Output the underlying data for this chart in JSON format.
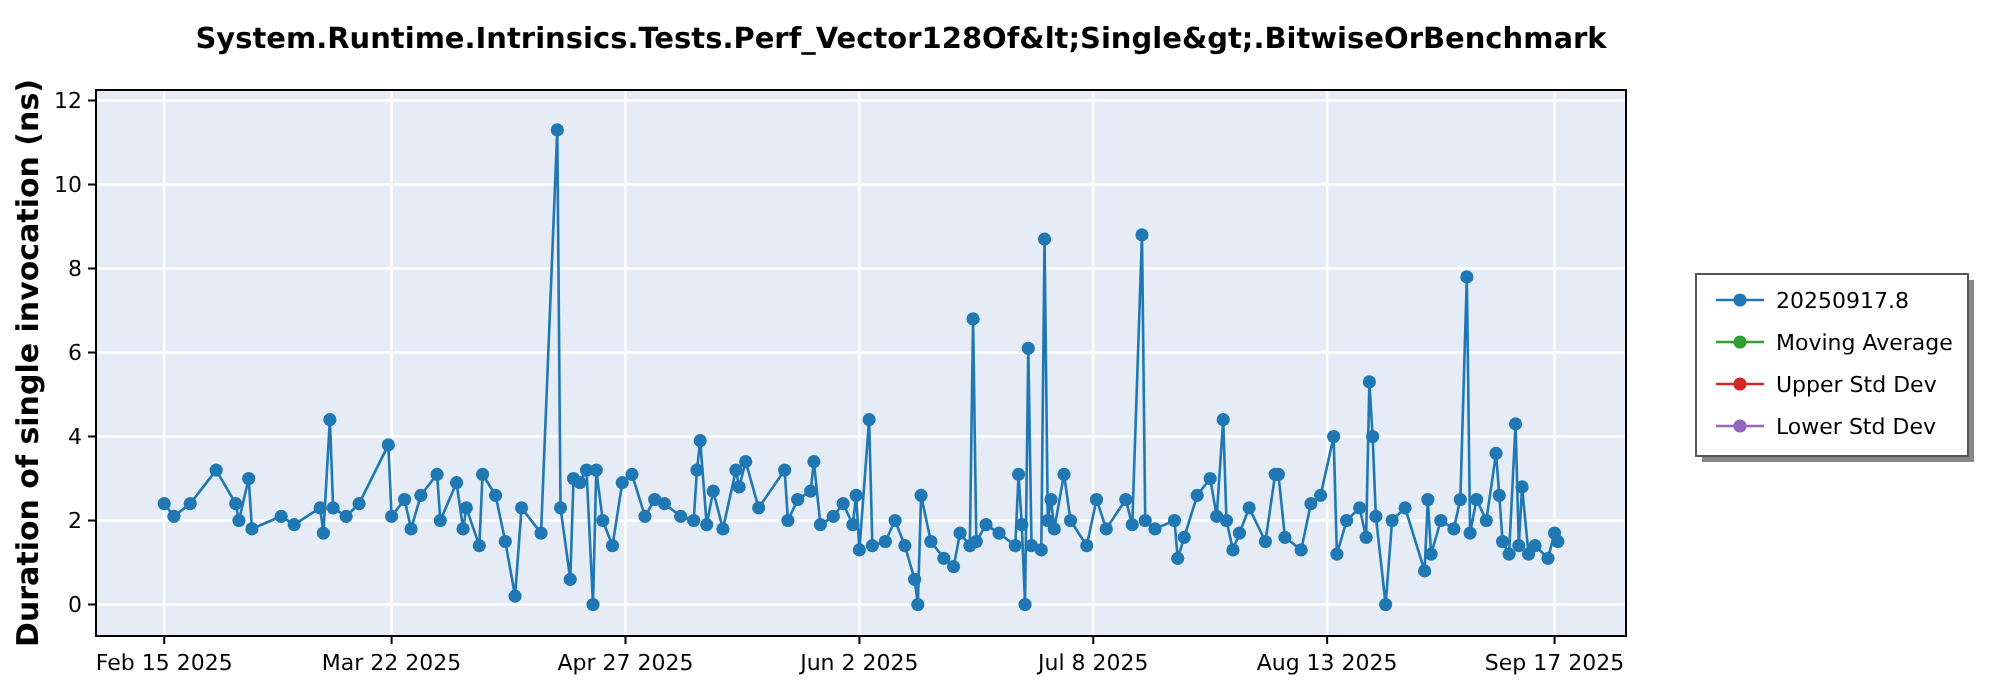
{
  "chart_data": {
    "type": "line",
    "title": "System.Runtime.Intrinsics.Tests.Perf_Vector128Of&lt;Single&gt;.BitwiseOrBenchmark",
    "ylabel": "Duration of single invocation (ns)",
    "legend": "right",
    "grid": true,
    "marker": "circle",
    "line_style": "solid",
    "xlim": [
      "2025-02-04T12:00",
      "2025-09-28"
    ],
    "xticks": [
      {
        "value": "2025-02-15",
        "label": "Feb 15 2025"
      },
      {
        "value": "2025-03-22",
        "label": "Mar 22 2025"
      },
      {
        "value": "2025-04-27",
        "label": "Apr 27 2025"
      },
      {
        "value": "2025-06-02",
        "label": "Jun 2 2025"
      },
      {
        "value": "2025-07-08",
        "label": "Jul 8 2025"
      },
      {
        "value": "2025-08-13",
        "label": "Aug 13 2025"
      },
      {
        "value": "2025-09-17",
        "label": "Sep 17 2025"
      }
    ],
    "ylim": [
      -0.75,
      12.25
    ],
    "yticks": [
      0,
      2,
      4,
      6,
      8,
      10,
      12
    ],
    "series": [
      {
        "name": "20250917.8",
        "color": "#1f77b4",
        "x": [
          "2025-02-15",
          "2025-02-16T12:00",
          "2025-02-19",
          "2025-02-23",
          "2025-02-26",
          "2025-02-26T12:00",
          "2025-02-28",
          "2025-02-28T12:00",
          "2025-03-05",
          "2025-03-07",
          "2025-03-11",
          "2025-03-11T12:00",
          "2025-03-12T12:00",
          "2025-03-13",
          "2025-03-15",
          "2025-03-17",
          "2025-03-21T12:00",
          "2025-03-22",
          "2025-03-24",
          "2025-03-25",
          "2025-03-26T12:00",
          "2025-03-29",
          "2025-03-29T12:00",
          "2025-04-01",
          "2025-04-02",
          "2025-04-02T12:00",
          "2025-04-04T12:00",
          "2025-04-05",
          "2025-04-07",
          "2025-04-08T12:00",
          "2025-04-10",
          "2025-04-11",
          "2025-04-14",
          "2025-04-16T12:00",
          "2025-04-17",
          "2025-04-18T12:00",
          "2025-04-19",
          "2025-04-20",
          "2025-04-21",
          "2025-04-22",
          "2025-04-22T12:00",
          "2025-04-23T12:00",
          "2025-04-25",
          "2025-04-26T12:00",
          "2025-04-28",
          "2025-04-30",
          "2025-05-01T12:00",
          "2025-05-03",
          "2025-05-05T12:00",
          "2025-05-07T12:00",
          "2025-05-08",
          "2025-05-08T12:00",
          "2025-05-09T12:00",
          "2025-05-10T12:00",
          "2025-05-12",
          "2025-05-14",
          "2025-05-14T12:00",
          "2025-05-15T12:00",
          "2025-05-17T12:00",
          "2025-05-21T12:00",
          "2025-05-22",
          "2025-05-23T12:00",
          "2025-05-25T12:00",
          "2025-05-26",
          "2025-05-27",
          "2025-05-29",
          "2025-05-30T12:00",
          "2025-06-01",
          "2025-06-01T12:00",
          "2025-06-02",
          "2025-06-03T12:00",
          "2025-06-04",
          "2025-06-06",
          "2025-06-07T12:00",
          "2025-06-09",
          "2025-06-10T12:00",
          "2025-06-11",
          "2025-06-11T12:00",
          "2025-06-13",
          "2025-06-15",
          "2025-06-16T12:00",
          "2025-06-17T12:00",
          "2025-06-19",
          "2025-06-19T12:00",
          "2025-06-20",
          "2025-06-21T12:00",
          "2025-06-23T12:00",
          "2025-06-26",
          "2025-06-26T12:00",
          "2025-06-27",
          "2025-06-27T12:00",
          "2025-06-28",
          "2025-06-28T12:00",
          "2025-06-30",
          "2025-06-30T12:00",
          "2025-07-01",
          "2025-07-01T12:00",
          "2025-07-02",
          "2025-07-03T12:00",
          "2025-07-04T12:00",
          "2025-07-07",
          "2025-07-08T12:00",
          "2025-07-10",
          "2025-07-13",
          "2025-07-14",
          "2025-07-15T12:00",
          "2025-07-16",
          "2025-07-17T12:00",
          "2025-07-20T12:00",
          "2025-07-21",
          "2025-07-22",
          "2025-07-24",
          "2025-07-26",
          "2025-07-27",
          "2025-07-28",
          "2025-07-28T12:00",
          "2025-07-29T12:00",
          "2025-07-30T12:00",
          "2025-08-01",
          "2025-08-03T12:00",
          "2025-08-05",
          "2025-08-05T12:00",
          "2025-08-06T12:00",
          "2025-08-09",
          "2025-08-10T12:00",
          "2025-08-12",
          "2025-08-14",
          "2025-08-14T12:00",
          "2025-08-16",
          "2025-08-18",
          "2025-08-19",
          "2025-08-19T12:00",
          "2025-08-20",
          "2025-08-20T12:00",
          "2025-08-22",
          "2025-08-23",
          "2025-08-25",
          "2025-08-28",
          "2025-08-28T12:00",
          "2025-08-29",
          "2025-08-30T12:00",
          "2025-09-01T12:00",
          "2025-09-02T12:00",
          "2025-09-03T12:00",
          "2025-09-04",
          "2025-09-05",
          "2025-09-06T12:00",
          "2025-09-08",
          "2025-09-08T12:00",
          "2025-09-09",
          "2025-09-10",
          "2025-09-11",
          "2025-09-11T12:00",
          "2025-09-12",
          "2025-09-13",
          "2025-09-14",
          "2025-09-16",
          "2025-09-17",
          "2025-09-17T12:00"
        ],
        "values": [
          2.4,
          2.1,
          2.4,
          3.2,
          2.4,
          2.0,
          3.0,
          1.8,
          2.1,
          1.9,
          2.3,
          1.7,
          4.4,
          2.3,
          2.1,
          2.4,
          3.8,
          2.1,
          2.5,
          1.8,
          2.6,
          3.1,
          2.0,
          2.9,
          1.8,
          2.3,
          1.4,
          3.1,
          2.6,
          1.5,
          0.2,
          2.3,
          1.7,
          11.3,
          2.3,
          0.6,
          3.0,
          2.9,
          3.2,
          0.0,
          3.2,
          2.0,
          1.4,
          2.9,
          3.1,
          2.1,
          2.5,
          2.4,
          2.1,
          2.0,
          3.2,
          3.9,
          1.9,
          2.7,
          1.8,
          3.2,
          2.8,
          3.4,
          2.3,
          3.2,
          2.0,
          2.5,
          2.7,
          3.4,
          1.9,
          2.1,
          2.4,
          1.9,
          2.6,
          1.3,
          4.4,
          1.4,
          1.5,
          2.0,
          1.4,
          0.6,
          0.0,
          2.6,
          1.5,
          1.1,
          0.9,
          1.7,
          1.4,
          6.8,
          1.5,
          1.9,
          1.7,
          1.4,
          3.1,
          1.9,
          0.0,
          6.1,
          1.4,
          1.3,
          8.7,
          2.0,
          2.5,
          1.8,
          3.1,
          2.0,
          1.4,
          2.5,
          1.8,
          2.5,
          1.9,
          8.8,
          2.0,
          1.8,
          2.0,
          1.1,
          1.6,
          2.6,
          3.0,
          2.1,
          4.4,
          2.0,
          1.3,
          1.7,
          2.3,
          1.5,
          3.1,
          3.1,
          1.6,
          1.3,
          2.4,
          2.6,
          4.0,
          1.2,
          2.0,
          2.3,
          1.6,
          5.3,
          4.0,
          2.1,
          0.0,
          2.0,
          2.3,
          0.8,
          2.5,
          1.2,
          2.0,
          1.8,
          2.5,
          7.8,
          1.7,
          2.5,
          2.0,
          3.6,
          2.6,
          1.5,
          1.2,
          4.3,
          1.4,
          2.8,
          1.2,
          1.4,
          1.1,
          1.7,
          1.5
        ]
      },
      {
        "name": "Moving Average",
        "color": "#2ca02c"
      },
      {
        "name": "Upper Std Dev",
        "color": "#d62728"
      },
      {
        "name": "Lower Std Dev",
        "color": "#9467bd"
      }
    ]
  }
}
